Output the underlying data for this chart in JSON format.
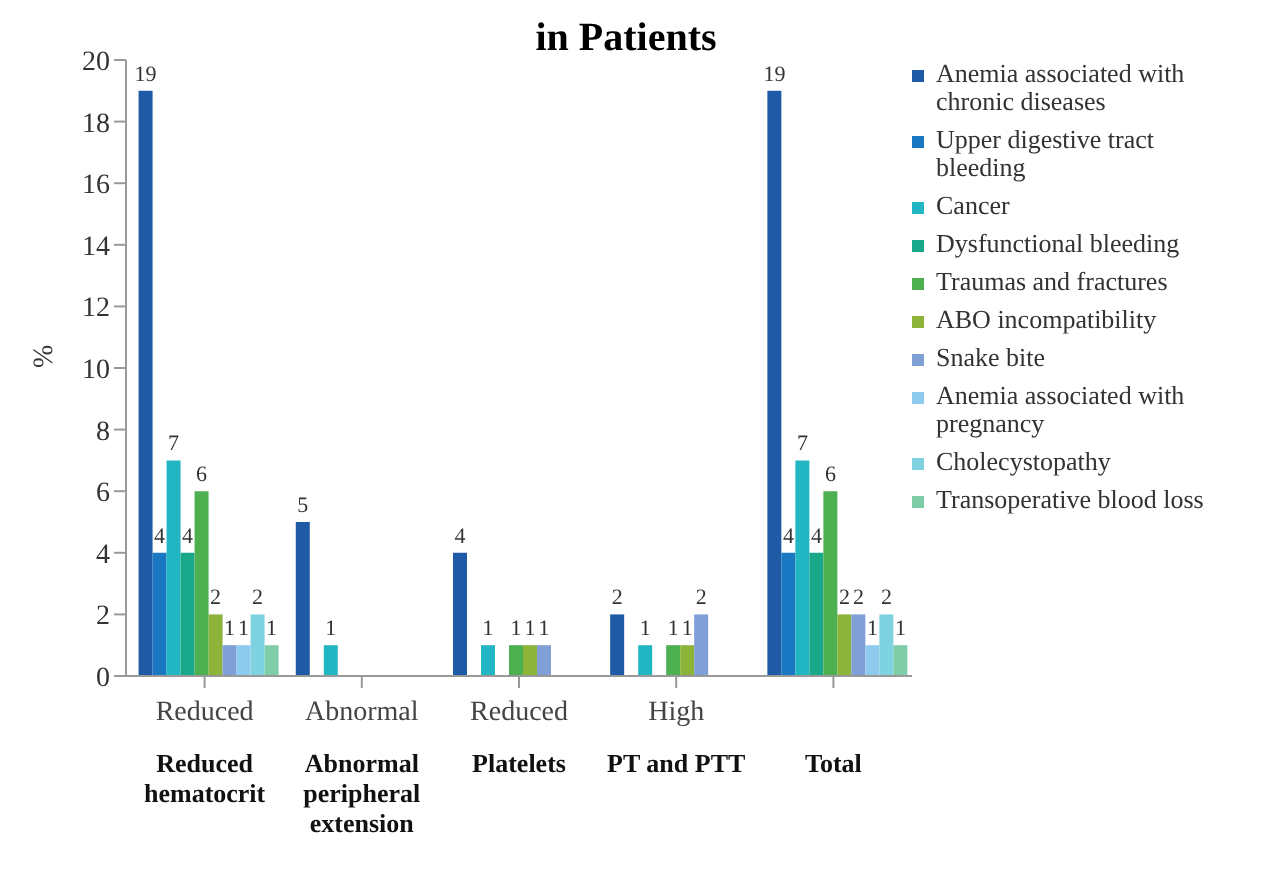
{
  "chart_data": {
    "type": "bar",
    "title": "in Patients",
    "ylabel": "%",
    "categories": [
      "Reduced hematocrit",
      "Abnormal peripheral extension",
      "Platelets",
      "PT and PTT",
      "Total"
    ],
    "annotations": [
      "Reduced",
      "Abnormal",
      "Reduced",
      "High"
    ],
    "series": [
      {
        "name": "Anemia associated with chronic diseases",
        "color": "#1f5aa6",
        "values": [
          19,
          5,
          4,
          2,
          19
        ]
      },
      {
        "name": "Upper digestive tract bleeding",
        "color": "#1a78c2",
        "values": [
          4,
          null,
          null,
          null,
          4
        ]
      },
      {
        "name": "Cancer",
        "color": "#22b5c2",
        "values": [
          7,
          1,
          1,
          1,
          7
        ]
      },
      {
        "name": "Dysfunctional bleeding",
        "color": "#1aa88a",
        "values": [
          4,
          null,
          null,
          null,
          4
        ]
      },
      {
        "name": "Traumas and fractures",
        "color": "#4caf50",
        "values": [
          6,
          null,
          1,
          1,
          6
        ]
      },
      {
        "name": "ABO incompatibility",
        "color": "#8db33a",
        "values": [
          2,
          null,
          1,
          1,
          2
        ]
      },
      {
        "name": "Snake bite",
        "color": "#7f9fd6",
        "values": [
          1,
          null,
          1,
          2,
          2
        ]
      },
      {
        "name": "Anemia associated with pregnancy",
        "color": "#8ec9ee",
        "values": [
          1,
          null,
          null,
          null,
          1
        ]
      },
      {
        "name": "Cholecystopathy",
        "color": "#7fd3e0",
        "values": [
          2,
          null,
          null,
          null,
          2
        ]
      },
      {
        "name": "Transoperative blood loss",
        "color": "#7fcca8",
        "values": [
          1,
          null,
          null,
          null,
          1
        ]
      }
    ],
    "ylim": [
      0,
      20
    ],
    "yticks": [
      0,
      2,
      4,
      6,
      8,
      10,
      12,
      14,
      16,
      18,
      20
    ],
    "data_labels": true,
    "legend": "right",
    "grid": false
  }
}
